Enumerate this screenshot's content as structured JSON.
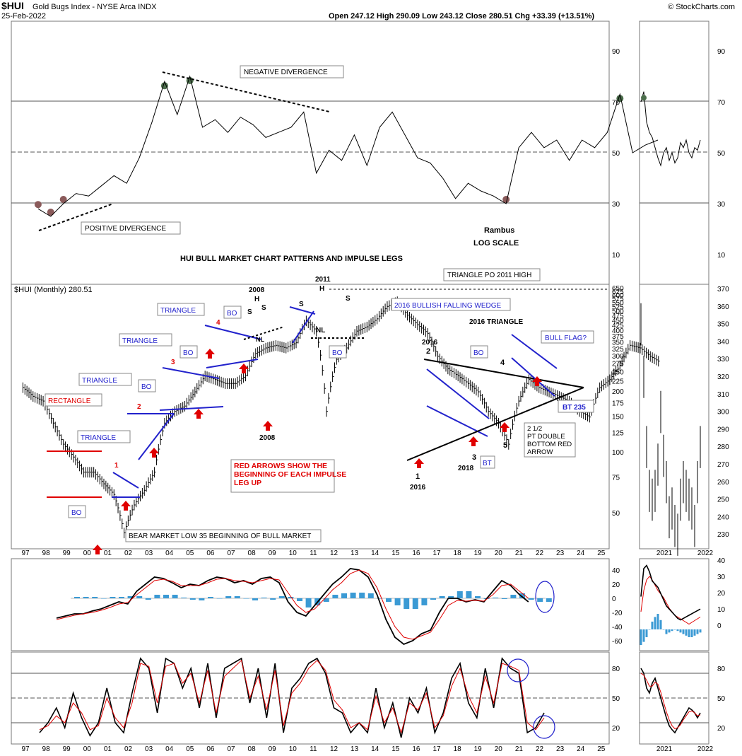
{
  "header": {
    "symbol": "$HUI",
    "index_name": "Gold Bugs Index - NYSE Arca INDX",
    "date": "25-Feb-2022",
    "quote": "Open 247.12  High 290.09  Low 243.12  Close 280.51  Chg +33.39 (+13.51%)",
    "copyright": "© StockCharts.com"
  },
  "colors": {
    "price": "#000000",
    "macd_signal": "#e00000",
    "histogram": "#3b9ad4",
    "annotation_blue": "#2222cc",
    "arrow_red": "#e00000",
    "rsi_green": "#4c6e4c",
    "rsi_brown": "#8a5a5a"
  },
  "chart_data": [
    {
      "type": "line",
      "panel": "rsi_top",
      "y_ticks": [
        "10",
        "30",
        "50",
        "70",
        "90"
      ],
      "ylim": [
        0,
        100
      ],
      "grid_lines": [
        30,
        50,
        70
      ],
      "x": [
        1997.5,
        1998,
        1998.5,
        1999,
        1999.5,
        2000,
        2000.5,
        2001,
        2001.5,
        2002,
        2002.5,
        2003,
        2003.5,
        2004,
        2004.5,
        2005,
        2005.5,
        2006,
        2006.5,
        2007,
        2007.5,
        2008,
        2008.5,
        2009,
        2009.5,
        2010,
        2010.5,
        2011,
        2011.5,
        2012,
        2012.5,
        2013,
        2013.5,
        2014,
        2014.5,
        2015,
        2015.5,
        2016,
        2016.5,
        2017,
        2017.5,
        2018,
        2018.5,
        2019,
        2019.5,
        2020,
        2020.5,
        2021,
        2021.5,
        2022
      ],
      "values": [
        28,
        25,
        30,
        34,
        33,
        37,
        41,
        38,
        48,
        62,
        78,
        65,
        80,
        60,
        63,
        58,
        64,
        61,
        56,
        58,
        60,
        66,
        42,
        51,
        47,
        57,
        45,
        60,
        66,
        57,
        48,
        46,
        40,
        32,
        38,
        35,
        33,
        30,
        52,
        58,
        52,
        55,
        47,
        55,
        52,
        58,
        73,
        50,
        53,
        55
      ],
      "annotations": [
        "NEGATIVE DIVERGENCE",
        "POSITIVE DIVERGENCE",
        "Rambus",
        "LOG SCALE",
        "HUI BULL MARKET CHART PATTERNS AND IMPULSE LEGS"
      ]
    },
    {
      "type": "line",
      "panel": "price",
      "title": "$HUI (Monthly) 280.51",
      "scale": "log",
      "y_ticks": [
        "50",
        "75",
        "100",
        "125",
        "150",
        "175",
        "200",
        "225",
        "250",
        "275",
        "300",
        "325",
        "350",
        "375",
        "400",
        "425",
        "450",
        "475",
        "500",
        "525",
        "550",
        "575",
        "600",
        "625",
        "650"
      ],
      "x_ticks": [
        "97",
        "98",
        "99",
        "00",
        "01",
        "02",
        "03",
        "04",
        "05",
        "06",
        "07",
        "08",
        "09",
        "10",
        "11",
        "12",
        "13",
        "14",
        "15",
        "16",
        "17",
        "18",
        "19",
        "20",
        "21",
        "22",
        "23",
        "24",
        "25"
      ],
      "x": [
        1996.9,
        1997.3,
        1997.7,
        1998.1,
        1998.5,
        1998.9,
        1999.3,
        1999.7,
        2000.1,
        2000.5,
        2000.9,
        2001.3,
        2001.7,
        2002.1,
        2002.5,
        2002.9,
        2003.3,
        2003.7,
        2004.1,
        2004.5,
        2004.9,
        2005.3,
        2005.7,
        2006.1,
        2006.5,
        2006.9,
        2007.3,
        2007.7,
        2008.1,
        2008.5,
        2008.9,
        2009.3,
        2009.7,
        2010.1,
        2010.5,
        2010.9,
        2011.3,
        2011.7,
        2012.1,
        2012.5,
        2012.9,
        2013.3,
        2013.7,
        2014.1,
        2014.5,
        2014.9,
        2015.3,
        2015.7,
        2016.1,
        2016.5,
        2016.9,
        2017.3,
        2017.7,
        2018.1,
        2018.5,
        2018.9,
        2019.3,
        2019.7,
        2020.1,
        2020.5,
        2020.9,
        2021.3,
        2021.7,
        2022.1
      ],
      "values": [
        210,
        190,
        180,
        140,
        110,
        95,
        80,
        80,
        70,
        62,
        40,
        55,
        65,
        80,
        140,
        160,
        170,
        200,
        240,
        230,
        220,
        220,
        240,
        310,
        330,
        340,
        330,
        350,
        450,
        400,
        160,
        290,
        330,
        400,
        420,
        460,
        530,
        560,
        480,
        430,
        390,
        300,
        260,
        240,
        220,
        200,
        160,
        140,
        110,
        180,
        230,
        210,
        200,
        190,
        180,
        160,
        150,
        210,
        230,
        270,
        340,
        330,
        300,
        280
      ],
      "annotations": [
        "RECTANGLE",
        "TRIANGLE",
        "TRIANGLE",
        "TRIANGLE",
        "TRIANGLE",
        "BO",
        "BO",
        "BO",
        "BO",
        "BO",
        "BO",
        "BT",
        "BT 235",
        "1",
        "2",
        "3",
        "4",
        "1",
        "2",
        "3",
        "4",
        "5",
        "2008",
        "2008",
        "2011",
        "2016",
        "2016",
        "2018",
        "H",
        "S",
        "S",
        "H",
        "S",
        "S",
        "NL",
        "NL",
        "2016 BULLISH FALLING WEDGE",
        "2016 TRIANGLE",
        "BULL FLAG?",
        "TRIANGLE PO 2011 HIGH",
        "RED ARROWS SHOW THE BEGINNING OF EACH IMPULSE LEG UP",
        "BEAR MARKET LOW 35 BEGINNING OF BULL MARKET",
        "2 1/2 PT DOUBLE BOTTOM RED ARROW"
      ]
    },
    {
      "type": "line",
      "panel": "macd",
      "y_ticks": [
        "40",
        "20",
        "0",
        "-20",
        "-40",
        "-60"
      ],
      "ylim": [
        -70,
        55
      ],
      "series": [
        {
          "values": [
            -28,
            -25,
            -22,
            -22,
            -18,
            -15,
            -10,
            -5,
            -8,
            10,
            20,
            30,
            28,
            22,
            15,
            20,
            18,
            25,
            30,
            28,
            22,
            25,
            20,
            28,
            30,
            22,
            -5,
            -20,
            -25,
            -10,
            5,
            20,
            30,
            42,
            40,
            30,
            5,
            -30,
            -55,
            -65,
            -60,
            -50,
            -45,
            -20,
            0,
            0,
            -5,
            -2,
            -5,
            10,
            25,
            18,
            5,
            -5
          ]
        },
        {
          "values": [
            -30,
            -27,
            -24,
            -22,
            -20,
            -17,
            -13,
            -8,
            -6,
            5,
            15,
            25,
            27,
            24,
            18,
            18,
            18,
            22,
            27,
            28,
            25,
            24,
            22,
            25,
            28,
            26,
            8,
            -10,
            -20,
            -15,
            -2,
            12,
            22,
            35,
            40,
            35,
            15,
            -15,
            -40,
            -55,
            -58,
            -53,
            -48,
            -30,
            -10,
            -3,
            -4,
            -3,
            -4,
            5,
            18,
            20,
            10,
            0
          ]
        }
      ],
      "histogram": [
        2,
        2,
        2,
        0,
        2,
        2,
        3,
        3,
        -2,
        5,
        5,
        5,
        1,
        -2,
        -3,
        2,
        0,
        3,
        3,
        0,
        -3,
        1,
        -2,
        3,
        2,
        -4,
        -13,
        -10,
        -5,
        5,
        7,
        8,
        8,
        7,
        0,
        -5,
        -10,
        -15,
        -15,
        -10,
        -2,
        3,
        3,
        10,
        10,
        3,
        -1,
        1,
        -1,
        5,
        7,
        -2,
        -5,
        -5
      ]
    },
    {
      "type": "line",
      "panel": "stochastic",
      "y_ticks": [
        "80",
        "50",
        "20"
      ],
      "ylim": [
        0,
        100
      ],
      "grid_lines": [
        20,
        50,
        80
      ],
      "series": [
        {
          "values": [
            15,
            25,
            40,
            20,
            55,
            30,
            12,
            25,
            60,
            25,
            15,
            55,
            90,
            80,
            35,
            90,
            85,
            60,
            80,
            40,
            85,
            30,
            80,
            85,
            90,
            45,
            80,
            30,
            85,
            15,
            60,
            70,
            85,
            90,
            75,
            40,
            35,
            15,
            25,
            15,
            60,
            20,
            45,
            10,
            50,
            35,
            60,
            15,
            35,
            70,
            85,
            45,
            30,
            80,
            40,
            90,
            80,
            75,
            15,
            20,
            35
          ]
        },
        {
          "values": [
            18,
            22,
            32,
            25,
            45,
            35,
            18,
            22,
            50,
            30,
            20,
            45,
            85,
            82,
            45,
            82,
            85,
            65,
            75,
            45,
            78,
            35,
            72,
            80,
            88,
            50,
            72,
            38,
            78,
            22,
            55,
            65,
            80,
            88,
            78,
            48,
            38,
            20,
            25,
            18,
            52,
            25,
            40,
            15,
            45,
            38,
            55,
            20,
            32,
            62,
            80,
            52,
            35,
            72,
            45,
            85,
            82,
            78,
            25,
            18,
            30
          ]
        }
      ]
    },
    {
      "type": "line",
      "panel": "inset",
      "x_ticks": [
        "2021",
        "2022"
      ],
      "price_ticks": [
        "230",
        "240",
        "250",
        "260",
        "270",
        "280",
        "290",
        "300",
        "310",
        "320",
        "330",
        "340",
        "350",
        "360",
        "370"
      ],
      "rsi_ticks": [
        "10",
        "30",
        "50",
        "70",
        "90"
      ],
      "macd_ticks": [
        "40",
        "30",
        "20",
        "10",
        "0"
      ],
      "stoch_ticks": [
        "80",
        "50",
        "20"
      ]
    }
  ]
}
